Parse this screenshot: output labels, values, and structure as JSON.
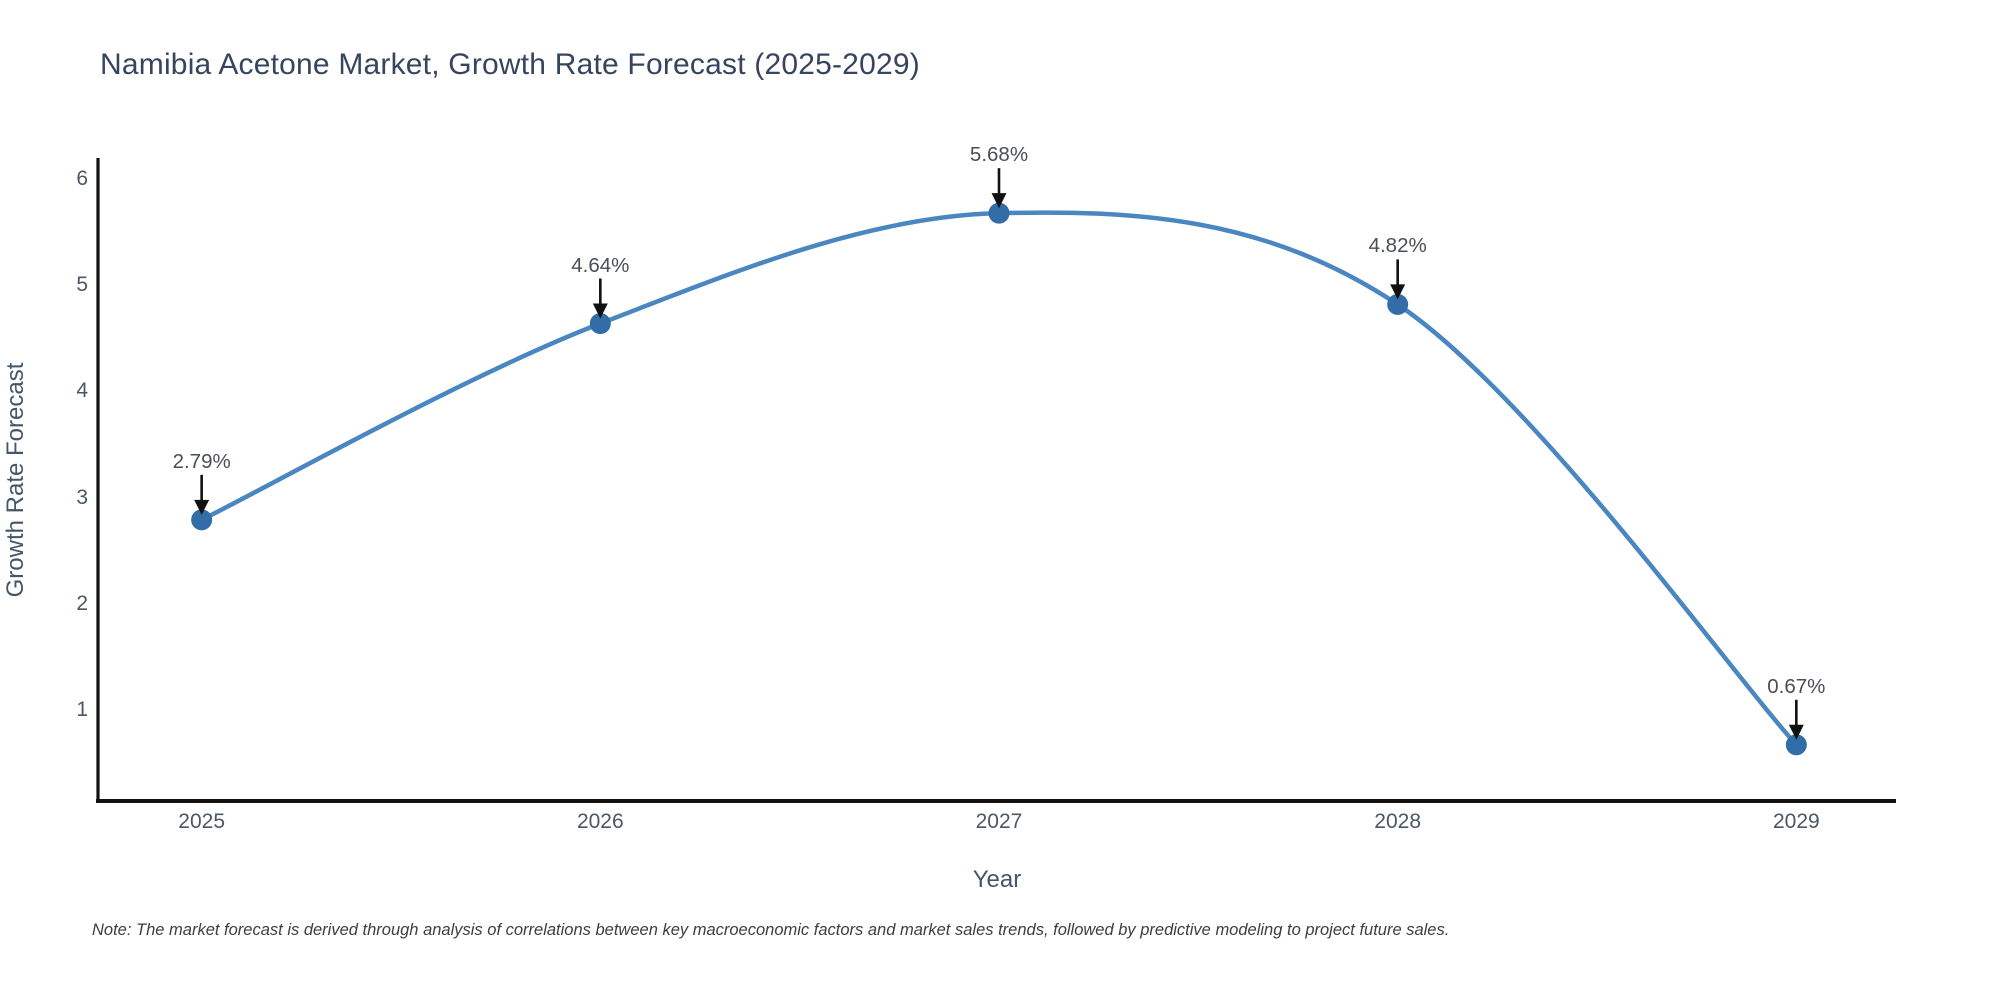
{
  "title": "Namibia Acetone Market, Growth Rate Forecast (2025-2029)",
  "note": "Note: The market forecast is derived through analysis of correlations between key macroeconomic factors and market sales trends, followed by predictive modeling to project future sales.",
  "chart_data": {
    "type": "line",
    "title": "Namibia Acetone Market, Growth Rate Forecast (2025-2029)",
    "xlabel": "Year",
    "ylabel": "Growth Rate Forecast",
    "categories": [
      "2025",
      "2026",
      "2027",
      "2028",
      "2029"
    ],
    "x": [
      2025,
      2026,
      2027,
      2028,
      2029
    ],
    "values": [
      2.79,
      4.64,
      5.68,
      4.82,
      0.67
    ],
    "point_labels": [
      "2.79%",
      "4.64%",
      "5.68%",
      "4.82%",
      "0.67%"
    ],
    "yticks": [
      1,
      2,
      3,
      4,
      5,
      6
    ],
    "ylim": [
      0.14,
      6.2
    ],
    "xlim": [
      2024.74,
      2029.25
    ],
    "line_shape": "spline",
    "grid": false,
    "legend": "none",
    "annotation_style": "value label above point with down arrow",
    "colors": {
      "line": "#4a86c0",
      "marker": "#336da8",
      "axis_line": "#111111",
      "arrow": "#111111",
      "title_text": "#36455f",
      "tick_text": "#4a5866",
      "axis_title_text": "#44566a",
      "annotation_text": "#4a4f55",
      "note_text": "#3a3f44",
      "background": "#ffffff"
    }
  }
}
